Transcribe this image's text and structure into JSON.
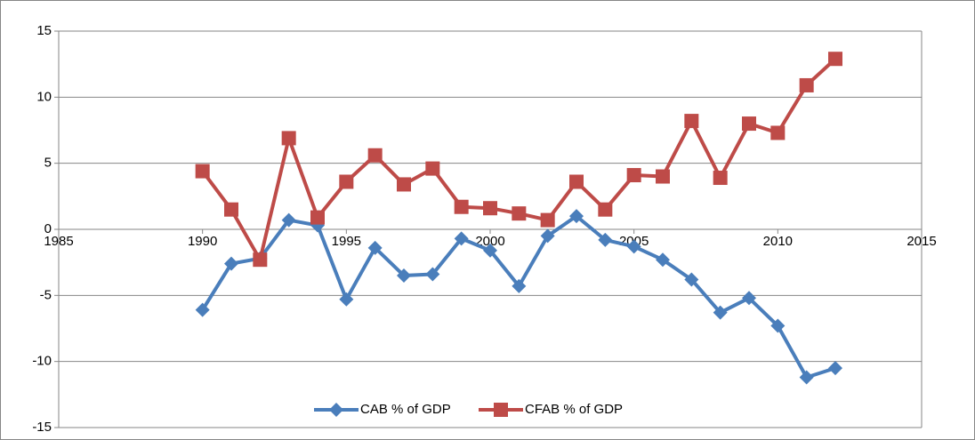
{
  "chart_data": {
    "type": "line",
    "x": [
      1990,
      1991,
      1992,
      1993,
      1994,
      1995,
      1996,
      1997,
      1998,
      1999,
      2000,
      2001,
      2002,
      2003,
      2004,
      2005,
      2006,
      2007,
      2008,
      2009,
      2010,
      2011,
      2012
    ],
    "series": [
      {
        "name": "CAB % of GDP",
        "color": "#4a7ebb",
        "marker": "diamond",
        "values": [
          -6.1,
          -2.6,
          -2.2,
          0.7,
          0.3,
          -5.3,
          -1.4,
          -3.5,
          -3.4,
          -0.7,
          -1.6,
          -4.3,
          -0.5,
          1.0,
          -0.8,
          -1.3,
          -2.3,
          -3.8,
          -6.3,
          -5.2,
          -7.3,
          -11.2,
          -10.5
        ]
      },
      {
        "name": "CFAB % of GDP",
        "color": "#be4b48",
        "marker": "square",
        "values": [
          4.4,
          1.5,
          -2.3,
          6.9,
          0.9,
          3.6,
          5.6,
          3.4,
          4.6,
          1.7,
          1.6,
          1.2,
          0.7,
          3.6,
          1.5,
          4.1,
          4.0,
          8.2,
          3.9,
          8.0,
          7.3,
          10.9,
          12.9
        ]
      }
    ],
    "xlim": [
      1985,
      2015
    ],
    "xticks": [
      1985,
      1990,
      1995,
      2000,
      2005,
      2010,
      2015
    ],
    "ylim": [
      -15,
      15
    ],
    "yticks": [
      -15,
      -10,
      -5,
      0,
      5,
      10,
      15
    ],
    "grid": true,
    "legend": "bottom"
  }
}
